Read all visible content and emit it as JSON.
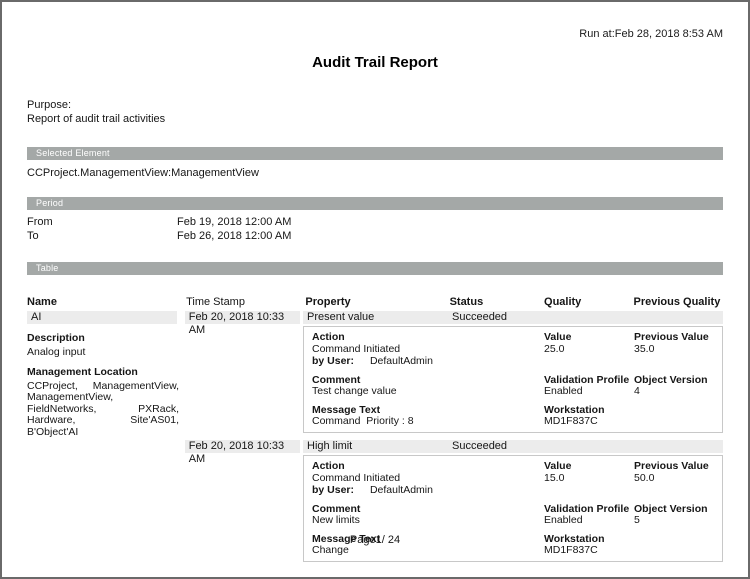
{
  "header": {
    "run_at": "Run at:Feb 28, 2018 8:53 AM",
    "title": "Audit Trail Report"
  },
  "purpose": {
    "label": "Purpose:",
    "text": "Report of audit trail activities"
  },
  "sections": {
    "selected_element": {
      "label": "Selected Element",
      "value": "CCProject.ManagementView:ManagementView"
    },
    "period": {
      "label": "Period",
      "from_label": "From",
      "from_value": "Feb 19, 2018 12:00 AM",
      "to_label": "To",
      "to_value": "Feb 26, 2018 12:00 AM"
    },
    "table": {
      "label": "Table",
      "columns": {
        "name": "Name",
        "timestamp": "Time Stamp",
        "property": "Property",
        "status": "Status",
        "quality": "Quality",
        "previous_quality": "Previous Quality"
      },
      "name_cell": {
        "name": "AI",
        "description_label": "Description",
        "description": "Analog input",
        "location_label": "Management Location",
        "location": "CCProject, ManagementView, ManagementView, FieldNetworks, PXRack, Hardware, Site'AS01, B'Object'AI"
      },
      "entries": [
        {
          "timestamp": "Feb 20, 2018 10:33 AM",
          "property": "Present value",
          "status": "Succeeded",
          "action_label": "Action",
          "action": "Command Initiated",
          "by_user_label": "by User:",
          "by_user": "DefaultAdmin",
          "value_label": "Value",
          "value": "25.0",
          "previous_value_label": "Previous Value",
          "previous_value": "35.0",
          "comment_label": "Comment",
          "comment": "Test change value",
          "validation_profile_label": "Validation Profile",
          "validation_profile": "Enabled",
          "object_version_label": "Object Version",
          "object_version": "4",
          "message_text_label": "Message Text",
          "message_text": "Command  Priority : 8",
          "workstation_label": "Workstation",
          "workstation": "MD1F837C"
        },
        {
          "timestamp": "Feb 20, 2018 10:33 AM",
          "property": "High limit",
          "status": "Succeeded",
          "action_label": "Action",
          "action": "Command Initiated",
          "by_user_label": "by User:",
          "by_user": "DefaultAdmin",
          "value_label": "Value",
          "value": "15.0",
          "previous_value_label": "Previous Value",
          "previous_value": "50.0",
          "comment_label": "Comment",
          "comment": "New limits",
          "validation_profile_label": "Validation Profile",
          "validation_profile": "Enabled",
          "object_version_label": "Object Version",
          "object_version": "5",
          "message_text_label": "Message Text",
          "message_text": "Change",
          "workstation_label": "Workstation",
          "workstation": "MD1F837C"
        }
      ]
    }
  },
  "footer": {
    "page_indicator": "Page1/ 24"
  }
}
